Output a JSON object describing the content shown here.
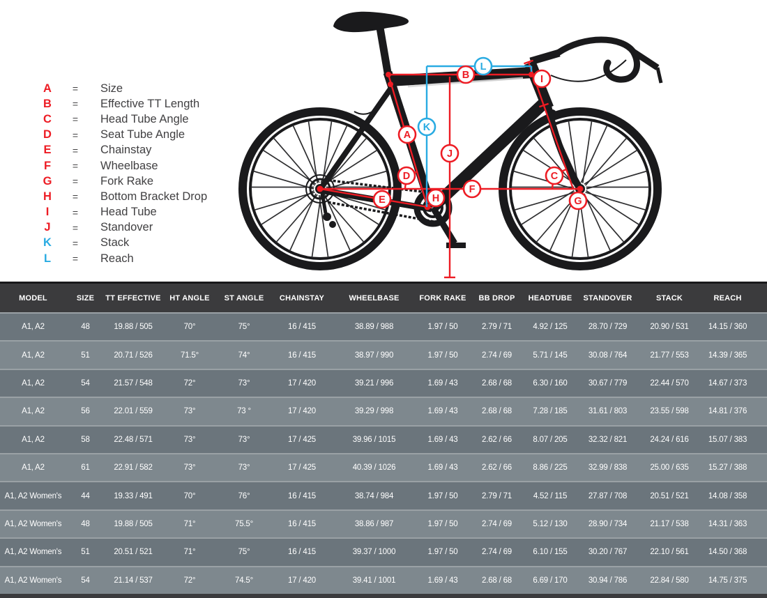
{
  "colors": {
    "red": "#ed1c24",
    "blue": "#29abe2",
    "ink": "#1a1a1c",
    "legend_text": "#414042",
    "header_bg": "#3b3b3d",
    "row_dark": "#6b757c",
    "row_light": "#7e888e",
    "separator": "#9aa1a5",
    "table_text": "#ffffff"
  },
  "diagram": {
    "equals_sign": "=",
    "legend": [
      {
        "letter": "A",
        "label": "Size",
        "color": "red"
      },
      {
        "letter": "B",
        "label": "Effective TT Length",
        "color": "red"
      },
      {
        "letter": "C",
        "label": "Head Tube Angle",
        "color": "red"
      },
      {
        "letter": "D",
        "label": "Seat Tube Angle",
        "color": "red"
      },
      {
        "letter": "E",
        "label": "Chainstay",
        "color": "red"
      },
      {
        "letter": "F",
        "label": "Wheelbase",
        "color": "red"
      },
      {
        "letter": "G",
        "label": "Fork Rake",
        "color": "red"
      },
      {
        "letter": "H",
        "label": "Bottom Bracket Drop",
        "color": "red"
      },
      {
        "letter": "I",
        "label": "Head Tube",
        "color": "red"
      },
      {
        "letter": "J",
        "label": "Standover",
        "color": "red"
      },
      {
        "letter": "K",
        "label": "Stack",
        "color": "blue"
      },
      {
        "letter": "L",
        "label": "Reach",
        "color": "blue"
      }
    ],
    "markers": [
      {
        "letter": "A",
        "color": "red"
      },
      {
        "letter": "B",
        "color": "red"
      },
      {
        "letter": "C",
        "color": "red"
      },
      {
        "letter": "D",
        "color": "red"
      },
      {
        "letter": "E",
        "color": "red"
      },
      {
        "letter": "F",
        "color": "red"
      },
      {
        "letter": "G",
        "color": "red"
      },
      {
        "letter": "H",
        "color": "red"
      },
      {
        "letter": "I",
        "color": "red"
      },
      {
        "letter": "J",
        "color": "red"
      },
      {
        "letter": "K",
        "color": "blue"
      },
      {
        "letter": "L",
        "color": "blue"
      }
    ]
  },
  "table": {
    "columns": [
      "MODEL",
      "SIZE",
      "TT EFFECTIVE",
      "HT ANGLE",
      "ST ANGLE",
      "CHAINSTAY",
      "WHEELBASE",
      "FORK RAKE",
      "BB DROP",
      "HEADTUBE",
      "STANDOVER",
      "STACK",
      "REACH"
    ],
    "rows": [
      [
        "A1, A2",
        "48",
        "19.88 / 505",
        "70°",
        "75°",
        "16 / 415",
        "38.89 / 988",
        "1.97 / 50",
        "2.79 / 71",
        "4.92 / 125",
        "28.70 / 729",
        "20.90 / 531",
        "14.15 / 360"
      ],
      [
        "A1, A2",
        "51",
        "20.71 / 526",
        "71.5°",
        "74°",
        "16 / 415",
        "38.97 / 990",
        "1.97 / 50",
        "2.74 / 69",
        "5.71 / 145",
        "30.08 / 764",
        "21.77 / 553",
        "14.39 / 365"
      ],
      [
        "A1, A2",
        "54",
        "21.57 / 548",
        "72°",
        "73°",
        "17 / 420",
        "39.21 / 996",
        "1.69 / 43",
        "2.68 / 68",
        "6.30 / 160",
        "30.67 / 779",
        "22.44 / 570",
        "14.67 / 373"
      ],
      [
        "A1, A2",
        "56",
        "22.01 / 559",
        "73°",
        "73 °",
        "17 / 420",
        "39.29 / 998",
        "1.69 / 43",
        "2.68 / 68",
        "7.28 / 185",
        "31.61 / 803",
        "23.55 / 598",
        "14.81 / 376"
      ],
      [
        "A1, A2",
        "58",
        "22.48 / 571",
        "73°",
        "73°",
        "17 / 425",
        "39.96 / 1015",
        "1.69 / 43",
        "2.62 / 66",
        "8.07 / 205",
        "32.32 / 821",
        "24.24 / 616",
        "15.07 / 383"
      ],
      [
        "A1, A2",
        "61",
        "22.91 / 582",
        "73°",
        "73°",
        "17 / 425",
        "40.39 / 1026",
        "1.69 / 43",
        "2.62 / 66",
        "8.86 / 225",
        "32.99 / 838",
        "25.00 / 635",
        "15.27 / 388"
      ],
      [
        "A1, A2 Women's",
        "44",
        "19.33 / 491",
        "70°",
        "76°",
        "16 / 415",
        "38.74 / 984",
        "1.97 / 50",
        "2.79 / 71",
        "4.52 / 115",
        "27.87 / 708",
        "20.51 / 521",
        "14.08 / 358"
      ],
      [
        "A1, A2 Women's",
        "48",
        "19.88 / 505",
        "71°",
        "75.5°",
        "16 / 415",
        "38.86 / 987",
        "1.97 / 50",
        "2.74 / 69",
        "5.12 / 130",
        "28.90 / 734",
        "21.17 / 538",
        "14.31 / 363"
      ],
      [
        "A1, A2 Women's",
        "51",
        "20.51 / 521",
        "71°",
        "75°",
        "16 / 415",
        "39.37 / 1000",
        "1.97 / 50",
        "2.74 / 69",
        "6.10 / 155",
        "30.20 / 767",
        "22.10 / 561",
        "14.50 / 368"
      ],
      [
        "A1, A2 Women's",
        "54",
        "21.14 / 537",
        "72°",
        "74.5°",
        "17 / 420",
        "39.41 / 1001",
        "1.69 / 43",
        "2.68 / 68",
        "6.69 / 170",
        "30.94 / 786",
        "22.84 / 580",
        "14.75 / 375"
      ]
    ]
  }
}
